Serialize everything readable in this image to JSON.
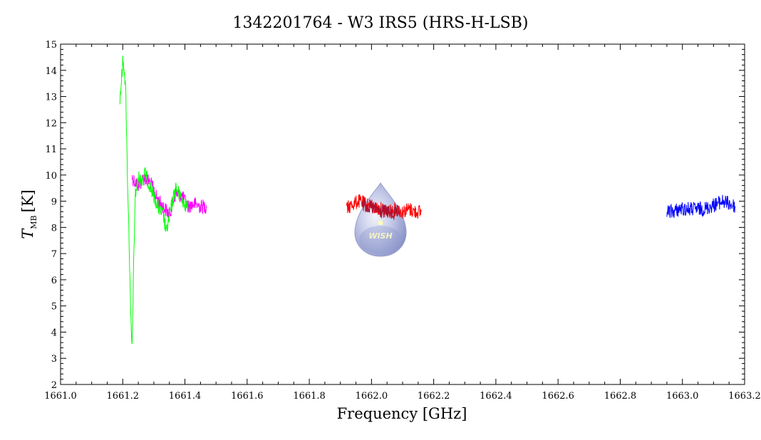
{
  "chart_data": {
    "type": "line",
    "title": "1342201764 - W3 IRS5 (HRS-H-LSB)",
    "xlabel": "Frequency [GHz]",
    "ylabel": {
      "symbol": "T",
      "subscript": "MB",
      "unit": "[K]"
    },
    "xlim": [
      1661.0,
      1663.2
    ],
    "ylim": [
      2,
      15
    ],
    "xticks": [
      "1661.0",
      "1661.2",
      "1661.4",
      "1661.6",
      "1661.8",
      "1662.0",
      "1662.2",
      "1662.4",
      "1662.6",
      "1662.8",
      "1663.0",
      "1663.2"
    ],
    "yticks": [
      "2",
      "3",
      "4",
      "5",
      "6",
      "7",
      "8",
      "9",
      "10",
      "11",
      "12",
      "13",
      "14",
      "15"
    ],
    "grid": false,
    "logo_text": "WISH",
    "series": [
      {
        "color": "#ff00ff",
        "x": [
          1661.23,
          1661.25,
          1661.27,
          1661.29,
          1661.31,
          1661.33,
          1661.35,
          1661.37,
          1661.39,
          1661.41,
          1661.43,
          1661.45,
          1661.47
        ],
        "y": [
          9.9,
          9.6,
          9.9,
          9.7,
          9.1,
          8.8,
          8.5,
          9.3,
          9.2,
          8.8,
          8.9,
          8.8,
          8.8
        ]
      },
      {
        "color": "#00ff00",
        "x": [
          1661.19,
          1661.195,
          1661.2,
          1661.205,
          1661.21,
          1661.215,
          1661.22,
          1661.225,
          1661.23,
          1661.235,
          1661.24,
          1661.25,
          1661.26,
          1661.27,
          1661.28,
          1661.29,
          1661.3,
          1661.31,
          1661.32,
          1661.33,
          1661.34,
          1661.35,
          1661.36,
          1661.37,
          1661.38,
          1661.39,
          1661.4,
          1661.41
        ],
        "y": [
          12.8,
          13.5,
          14.3,
          14.1,
          13.0,
          10.0,
          7.8,
          4.8,
          3.3,
          6.5,
          9.2,
          9.9,
          9.8,
          10.1,
          9.8,
          9.5,
          9.2,
          8.9,
          8.6,
          8.5,
          7.8,
          8.4,
          9.0,
          9.5,
          9.3,
          9.1,
          8.9,
          8.8
        ]
      },
      {
        "color": "#ff0000",
        "x": [
          1661.92,
          1661.94,
          1661.96,
          1661.98,
          1662.0,
          1662.02,
          1662.04,
          1662.06,
          1662.08,
          1662.1,
          1662.12,
          1662.14,
          1662.16
        ],
        "y": [
          8.7,
          8.9,
          9.0,
          8.9,
          8.8,
          8.7,
          8.7,
          8.6,
          8.7,
          8.6,
          8.7,
          8.6,
          8.6
        ]
      },
      {
        "color": "#aa1133",
        "x": [
          1661.97,
          1661.99,
          1662.01,
          1662.03,
          1662.05,
          1662.07,
          1662.09
        ],
        "y": [
          8.9,
          8.8,
          8.7,
          8.6,
          8.6,
          8.5,
          8.6
        ]
      },
      {
        "color": "#0000ff",
        "x": [
          1662.95,
          1662.97,
          1662.99,
          1663.01,
          1663.03,
          1663.05,
          1663.07,
          1663.09,
          1663.11,
          1663.13,
          1663.15,
          1663.17
        ],
        "y": [
          8.6,
          8.6,
          8.7,
          8.7,
          8.7,
          8.7,
          8.7,
          8.8,
          8.9,
          9.0,
          8.9,
          8.8
        ]
      }
    ]
  }
}
